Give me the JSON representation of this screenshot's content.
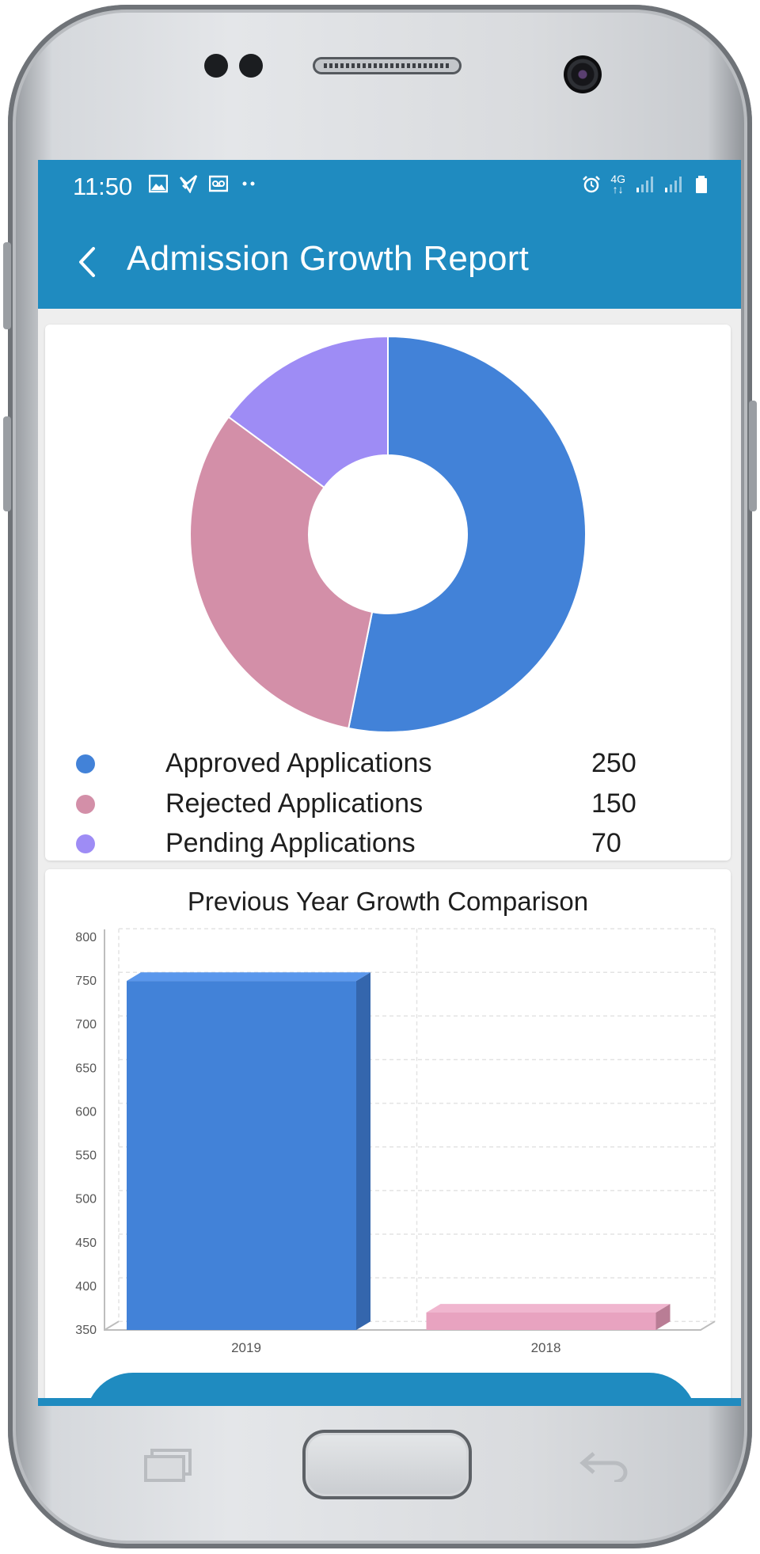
{
  "status_bar": {
    "time": "11:50",
    "left_icons": [
      "image-icon",
      "check-flag-icon",
      "voicemail-icon",
      "more-dots-icon"
    ],
    "right_icons": [
      "alarm-icon",
      "network-4g-icon",
      "signal-icon",
      "signal-icon",
      "battery-icon"
    ],
    "network_label": "4G"
  },
  "app_bar": {
    "title": "Admission Growth Report",
    "back_icon": "chevron-left-icon",
    "color": "#1f8bc0"
  },
  "chart_data": [
    {
      "type": "pie",
      "donut": true,
      "title": "",
      "categories": [
        "Approved Applications",
        "Rejected Applications",
        "Pending Applications"
      ],
      "values": [
        250,
        150,
        70
      ],
      "colors": [
        "#4282d8",
        "#d38fa8",
        "#9e8cf5"
      ]
    },
    {
      "type": "bar",
      "title": "Previous Year Growth Comparison",
      "categories": [
        "2019",
        "2018"
      ],
      "values": [
        750,
        370
      ],
      "colors": [
        "#4282d8",
        "#e8a3c0"
      ],
      "ylim": [
        350,
        800
      ],
      "yticks": [
        "800",
        "750",
        "700",
        "650",
        "600",
        "550",
        "500",
        "450",
        "400",
        "350"
      ],
      "grid": true,
      "xlabel": "",
      "ylabel": ""
    }
  ]
}
